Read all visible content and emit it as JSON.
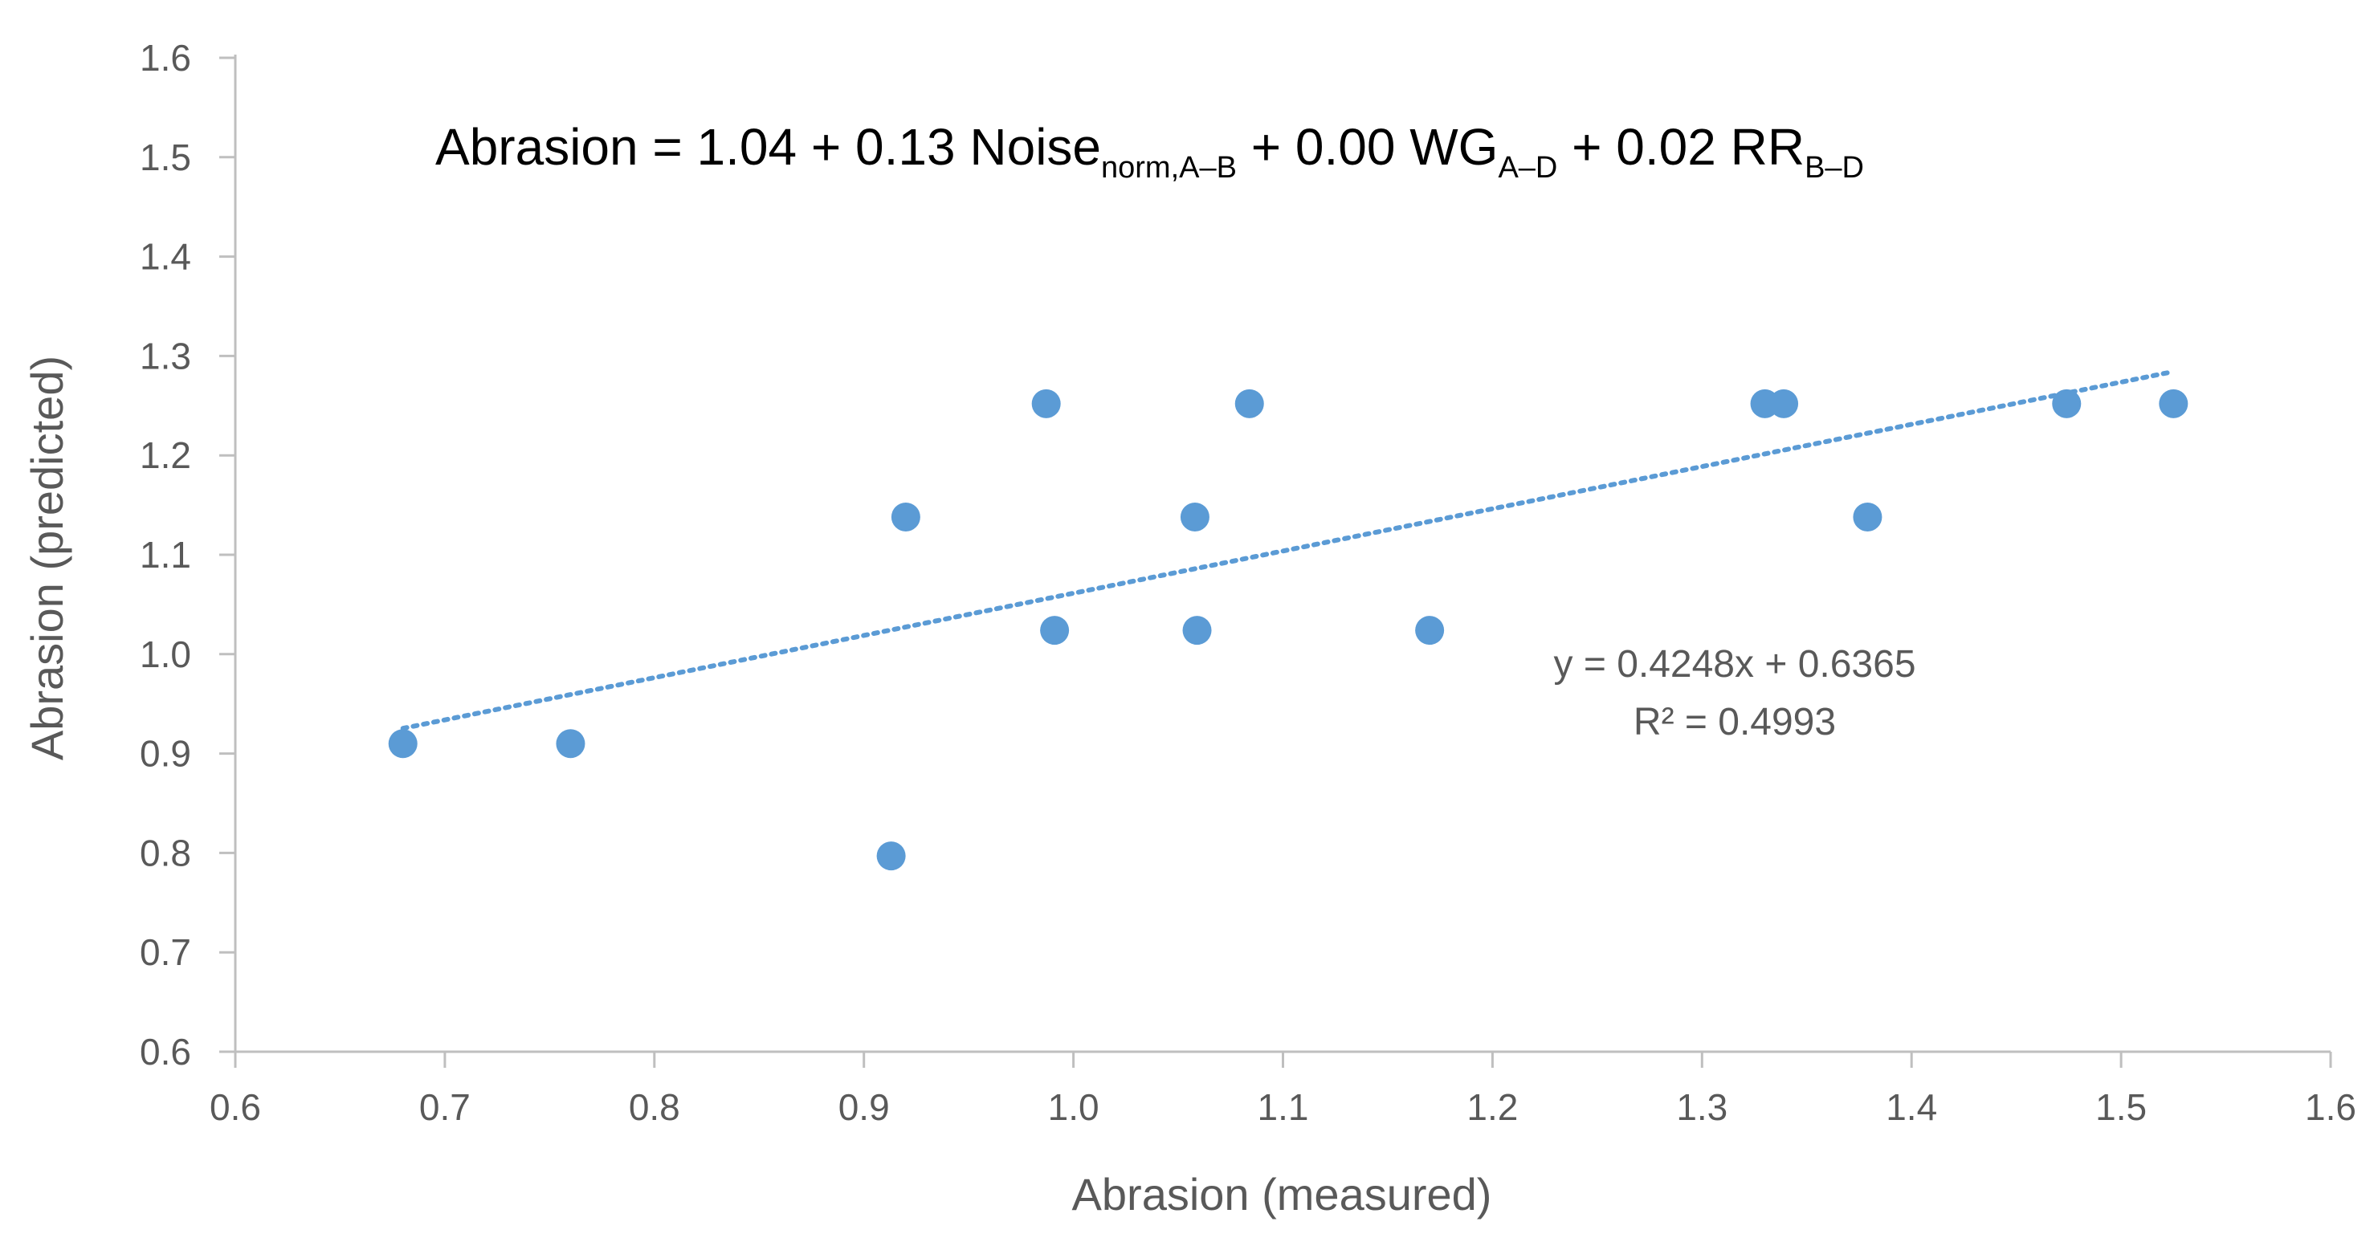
{
  "chart_data": {
    "type": "scatter",
    "title": "",
    "xlabel": "Abrasion (measured)",
    "ylabel": "Abrasion (predicted)",
    "xlim": [
      0.6,
      1.6
    ],
    "ylim": [
      0.6,
      1.6
    ],
    "x_ticks": [
      "0.6",
      "0.7",
      "0.8",
      "0.9",
      "1.0",
      "1.1",
      "1.2",
      "1.3",
      "1.4",
      "1.5",
      "1.6"
    ],
    "y_ticks": [
      "0.6",
      "0.7",
      "0.8",
      "0.9",
      "1.0",
      "1.1",
      "1.2",
      "1.3",
      "1.4",
      "1.5",
      "1.6"
    ],
    "series": [
      {
        "name": "Abrasion",
        "color": "#5b9bd5",
        "points": [
          {
            "x": 0.68,
            "y": 0.91
          },
          {
            "x": 0.76,
            "y": 0.91
          },
          {
            "x": 0.913,
            "y": 0.797
          },
          {
            "x": 0.92,
            "y": 1.138
          },
          {
            "x": 0.987,
            "y": 1.252
          },
          {
            "x": 0.991,
            "y": 1.024
          },
          {
            "x": 1.058,
            "y": 1.138
          },
          {
            "x": 1.059,
            "y": 1.024
          },
          {
            "x": 1.084,
            "y": 1.252
          },
          {
            "x": 1.17,
            "y": 1.024
          },
          {
            "x": 1.33,
            "y": 1.252
          },
          {
            "x": 1.339,
            "y": 1.252
          },
          {
            "x": 1.379,
            "y": 1.138
          },
          {
            "x": 1.474,
            "y": 1.252
          },
          {
            "x": 1.525,
            "y": 1.252
          }
        ]
      }
    ],
    "trendline": {
      "type": "linear",
      "style": "dotted",
      "color": "#5b9bd5",
      "slope": 0.4248,
      "intercept": 0.6365,
      "x_range": [
        0.68,
        1.525
      ],
      "equation_label": "y = 0.4248x + 0.6365",
      "r2_label": "R² = 0.4993"
    },
    "annotation": {
      "parts": [
        {
          "text": "Abrasion = 1.04 + 0.13 Noise",
          "sub": false
        },
        {
          "text": "norm,A–B",
          "sub": true
        },
        {
          "text": " + 0.00 WG",
          "sub": false
        },
        {
          "text": "A–D",
          "sub": true
        },
        {
          "text": " + 0.02 RR",
          "sub": false
        },
        {
          "text": "B–D",
          "sub": true
        }
      ]
    },
    "grid": false
  }
}
